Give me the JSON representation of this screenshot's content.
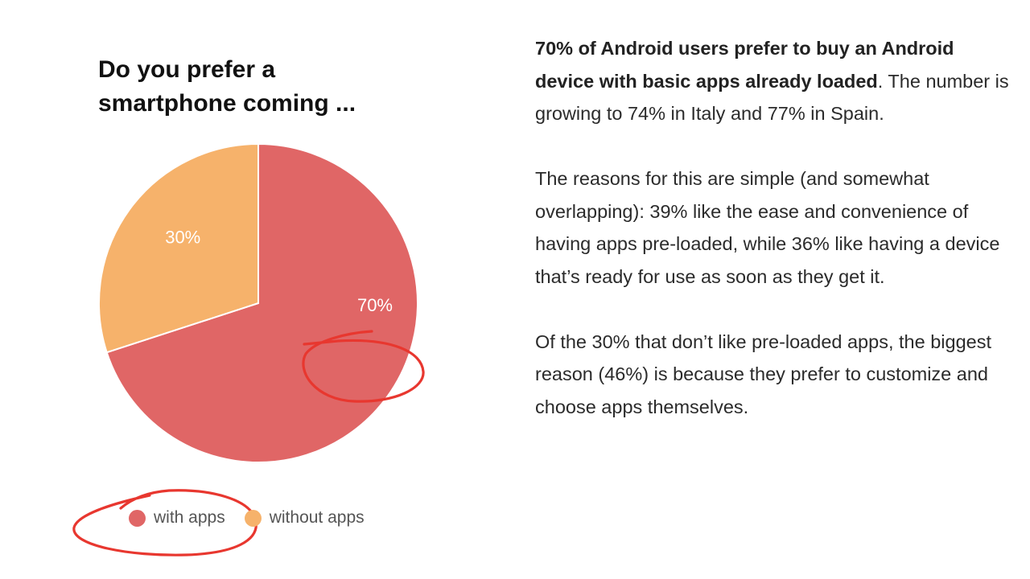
{
  "chart_data": {
    "type": "pie",
    "title_lines": [
      "Do you prefer a",
      "smartphone coming ..."
    ],
    "slices": [
      {
        "label": "with apps",
        "value": 70,
        "display": "70%",
        "color": "#e06666"
      },
      {
        "label": "without apps",
        "value": 30,
        "display": "30%",
        "color": "#f6b26b"
      }
    ],
    "legend_placement": "bottom"
  },
  "annotations": {
    "circle_color": "#e8372f",
    "circled_items": [
      "70% label",
      "with apps legend entry"
    ]
  },
  "article": {
    "p1_bold": "70% of Android users prefer to buy an Android device with basic apps already loaded",
    "p1_rest": ". The number is growing to 74% in Italy and 77% in Spain.",
    "p2": "The reasons for this are simple (and somewhat overlapping): 39% like the ease and convenience of having apps pre-loaded, while 36% like having a device that’s ready for use as soon as they get it.",
    "p3": "Of the 30% that don’t like pre-loaded apps, the biggest reason (46%) is because they prefer to customize and choose apps themselves."
  }
}
